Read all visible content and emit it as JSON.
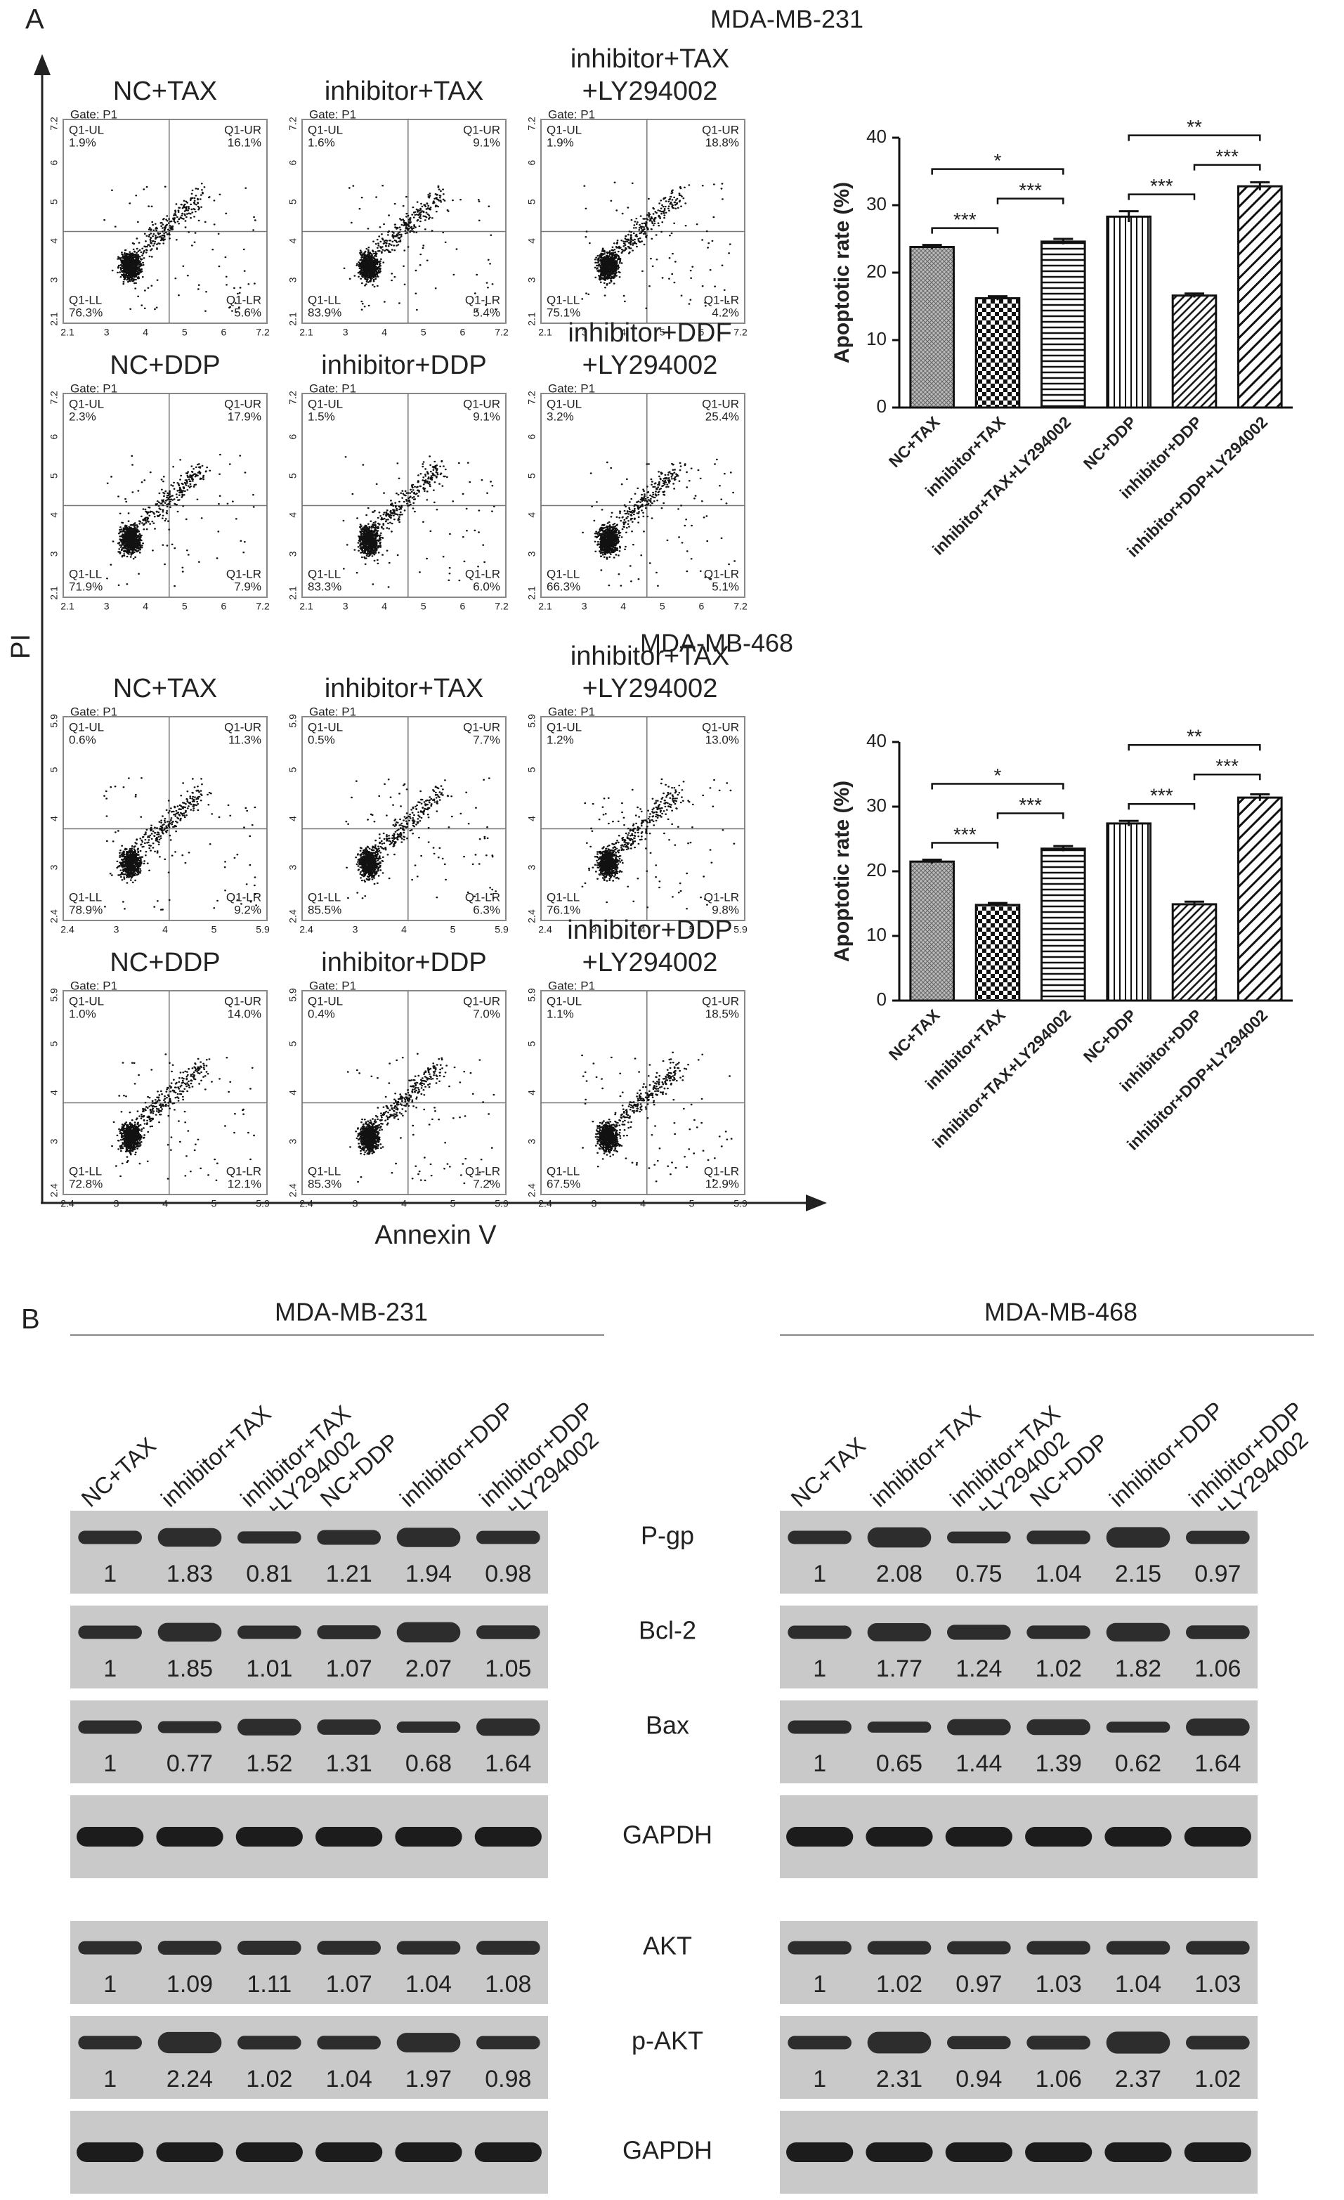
{
  "panel_a": {
    "label": "A",
    "y_axis_label": "PI",
    "x_axis_label": "Annexin V",
    "gate": "Gate: P1",
    "quadrant_names": [
      "Q1-UL",
      "Q1-UR",
      "Q1-LL",
      "Q1-LR"
    ],
    "groups": [
      {
        "cell_line": "MDA-MB-231",
        "x_ticks": [
          "2.1",
          "3",
          "4",
          "5",
          "6",
          "7.2"
        ],
        "y_ticks": [
          "2.1",
          "3",
          "4",
          "5",
          "6",
          "7.2"
        ],
        "plots": [
          {
            "title": [
              "NC+TAX"
            ],
            "quadrants": [
              "1.9%",
              "16.1%",
              "76.3%",
              "5.6%"
            ]
          },
          {
            "title": [
              "inhibitor+TAX"
            ],
            "quadrants": [
              "1.6%",
              "9.1%",
              "83.9%",
              "5.4%"
            ]
          },
          {
            "title": [
              "inhibitor+TAX",
              "+LY294002"
            ],
            "quadrants": [
              "1.9%",
              "18.8%",
              "75.1%",
              "4.2%"
            ]
          },
          {
            "title": [
              "NC+DDP"
            ],
            "quadrants": [
              "2.3%",
              "17.9%",
              "71.9%",
              "7.9%"
            ]
          },
          {
            "title": [
              "inhibitor+DDP"
            ],
            "quadrants": [
              "1.5%",
              "9.1%",
              "83.3%",
              "6.0%"
            ]
          },
          {
            "title": [
              "inhibitor+DDF",
              "+LY294002"
            ],
            "quadrants": [
              "3.2%",
              "25.4%",
              "66.3%",
              "5.1%"
            ]
          }
        ]
      },
      {
        "cell_line": "MDA-MB-468",
        "x_ticks": [
          "2.4",
          "3",
          "4",
          "5",
          "5.9"
        ],
        "y_ticks": [
          "2.4",
          "3",
          "4",
          "5",
          "5.9"
        ],
        "plots": [
          {
            "title": [
              "NC+TAX"
            ],
            "quadrants": [
              "0.6%",
              "11.3%",
              "78.9%",
              "9.2%"
            ]
          },
          {
            "title": [
              "inhibitor+TAX"
            ],
            "quadrants": [
              "0.5%",
              "7.7%",
              "85.5%",
              "6.3%"
            ]
          },
          {
            "title": [
              "inhibitor+TAX",
              "+LY294002"
            ],
            "quadrants": [
              "1.2%",
              "13.0%",
              "76.1%",
              "9.8%"
            ]
          },
          {
            "title": [
              "NC+DDP"
            ],
            "quadrants": [
              "1.0%",
              "14.0%",
              "72.8%",
              "12.1%"
            ]
          },
          {
            "title": [
              "inhibitor+DDP"
            ],
            "quadrants": [
              "0.4%",
              "7.0%",
              "85.3%",
              "7.2%"
            ]
          },
          {
            "title": [
              "inhibitor+DDP",
              "+LY294002"
            ],
            "quadrants": [
              "1.1%",
              "18.5%",
              "67.5%",
              "12.9%"
            ]
          }
        ]
      }
    ]
  },
  "chart_data": [
    {
      "type": "bar",
      "y_label": "Apoptotic rate  (%)",
      "categories": [
        "NC+TAX",
        "inhibitor+TAX",
        "inhibitor+TAX+LY294002",
        "NC+DDP",
        "inhibitor+DDP",
        "inhibitor+DDP+LY294002"
      ],
      "values": [
        23.8,
        16.2,
        24.6,
        28.3,
        16.6,
        32.8
      ],
      "errors": [
        0.3,
        0.3,
        0.4,
        0.8,
        0.3,
        0.6
      ],
      "patterns": [
        "crosshatch",
        "checker",
        "horizontal",
        "vertical",
        "diagonal",
        "diagonal-wide"
      ],
      "color": "#111111",
      "ylim": [
        0,
        40
      ],
      "yticks": [
        0,
        10,
        20,
        30,
        40
      ],
      "significance": [
        {
          "between": [
            "NC+TAX",
            "inhibitor+TAX"
          ],
          "label": "***"
        },
        {
          "between": [
            "inhibitor+TAX",
            "inhibitor+TAX+LY294002"
          ],
          "label": "***"
        },
        {
          "between": [
            "NC+TAX",
            "inhibitor+TAX+LY294002"
          ],
          "label": "*"
        },
        {
          "between": [
            "NC+DDP",
            "inhibitor+DDP"
          ],
          "label": "***"
        },
        {
          "between": [
            "NC+DDP",
            "inhibitor+DDP+LY294002"
          ],
          "label": "**"
        },
        {
          "between": [
            "inhibitor+DDP",
            "inhibitor+DDP+LY294002"
          ],
          "label": "***"
        }
      ]
    },
    {
      "type": "bar",
      "y_label": "Apoptotic rate  (%)",
      "categories": [
        "NC+TAX",
        "inhibitor+TAX",
        "inhibitor+TAX+LY294002",
        "NC+DDP",
        "inhibitor+DDP",
        "inhibitor+DDP+LY294002"
      ],
      "values": [
        21.5,
        14.8,
        23.5,
        27.4,
        14.9,
        31.4
      ],
      "errors": [
        0.3,
        0.3,
        0.4,
        0.4,
        0.4,
        0.5
      ],
      "patterns": [
        "crosshatch",
        "checker",
        "horizontal",
        "vertical",
        "diagonal",
        "diagonal-wide"
      ],
      "color": "#111111",
      "ylim": [
        0,
        40
      ],
      "yticks": [
        0,
        10,
        20,
        30,
        40
      ],
      "significance": [
        {
          "between": [
            "NC+TAX",
            "inhibitor+TAX"
          ],
          "label": "***"
        },
        {
          "between": [
            "inhibitor+TAX",
            "inhibitor+TAX+LY294002"
          ],
          "label": "***"
        },
        {
          "between": [
            "NC+TAX",
            "inhibitor+TAX+LY294002"
          ],
          "label": "*"
        },
        {
          "between": [
            "NC+DDP",
            "inhibitor+DDP"
          ],
          "label": "***"
        },
        {
          "between": [
            "NC+DDP",
            "inhibitor+DDP+LY294002"
          ],
          "label": "**"
        },
        {
          "between": [
            "inhibitor+DDP",
            "inhibitor+DDP+LY294002"
          ],
          "label": "***"
        }
      ]
    }
  ],
  "panel_b": {
    "label": "B",
    "groups": [
      "MDA-MB-231",
      "MDA-MB-468"
    ],
    "lanes": [
      [
        "NC+TAX"
      ],
      [
        "inhibitor+TAX"
      ],
      [
        "inhibitor+TAX",
        "+LY294002"
      ],
      [
        "NC+DDP"
      ],
      [
        "inhibitor+DDP"
      ],
      [
        "inhibitor+DDP",
        "+LY294002"
      ]
    ],
    "rows": [
      {
        "name": "P-gp",
        "ratios": [
          [
            1,
            1.83,
            0.81,
            1.21,
            1.94,
            0.98
          ],
          [
            1,
            2.08,
            0.75,
            1.04,
            2.15,
            0.97
          ]
        ]
      },
      {
        "name": "Bcl-2",
        "ratios": [
          [
            1,
            1.85,
            1.01,
            1.07,
            2.07,
            1.05
          ],
          [
            1,
            1.77,
            1.24,
            1.02,
            1.82,
            1.06
          ]
        ]
      },
      {
        "name": "Bax",
        "ratios": [
          [
            1,
            0.77,
            1.52,
            1.31,
            0.68,
            1.64
          ],
          [
            1,
            0.65,
            1.44,
            1.39,
            0.62,
            1.64
          ]
        ]
      },
      {
        "name": "GAPDH"
      },
      {
        "name": "AKT",
        "ratios": [
          [
            1,
            1.09,
            1.11,
            1.07,
            1.04,
            1.08
          ],
          [
            1,
            1.02,
            0.97,
            1.03,
            1.04,
            1.03
          ]
        ]
      },
      {
        "name": "p-AKT",
        "ratios": [
          [
            1,
            2.24,
            1.02,
            1.04,
            1.97,
            0.98
          ],
          [
            1,
            2.31,
            0.94,
            1.06,
            2.37,
            1.02
          ]
        ]
      },
      {
        "name": "GAPDH"
      }
    ]
  }
}
